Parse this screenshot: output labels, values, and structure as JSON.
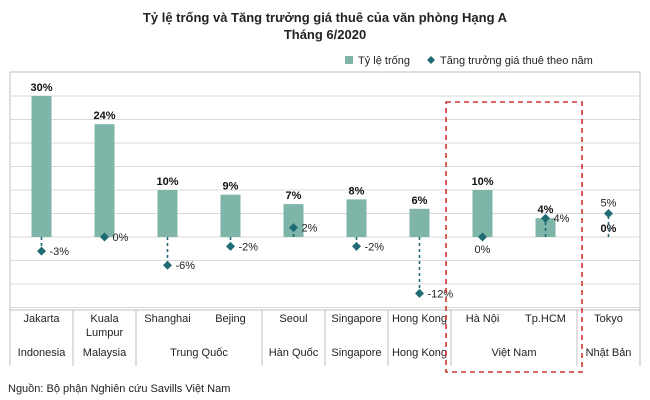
{
  "chart_data": {
    "type": "bar",
    "title_line1": "Tỷ lệ trống và Tăng trưởng giá thuê của văn phòng Hạng A",
    "title_line2": "Tháng 6/2020",
    "legend": {
      "bar_label": "Tỷ lệ trống",
      "marker_label": "Tăng trưởng giá thuê theo năm"
    },
    "categories": [
      {
        "label": "Jakarta",
        "label2": ""
      },
      {
        "label": "Kuala",
        "label2": "Lumpur"
      },
      {
        "label": "Shanghai",
        "label2": ""
      },
      {
        "label": "Bejing",
        "label2": ""
      },
      {
        "label": "Seoul",
        "label2": ""
      },
      {
        "label": "Singapore",
        "label2": ""
      },
      {
        "label": "Hong Kong",
        "label2": ""
      },
      {
        "label": "Hà Nội",
        "label2": ""
      },
      {
        "label": "Tp.HCM",
        "label2": ""
      },
      {
        "label": "Tokyo",
        "label2": ""
      }
    ],
    "groups": [
      {
        "label": "Indonesia",
        "span": [
          0,
          0
        ]
      },
      {
        "label": "Malaysia",
        "span": [
          1,
          1
        ]
      },
      {
        "label": "Trung Quốc",
        "span": [
          2,
          3
        ]
      },
      {
        "label": "Hàn Quốc",
        "span": [
          4,
          4
        ]
      },
      {
        "label": "Singapore",
        "span": [
          5,
          5
        ]
      },
      {
        "label": "Hong Kong",
        "span": [
          6,
          6
        ]
      },
      {
        "label": "Việt Nam",
        "span": [
          7,
          8
        ]
      },
      {
        "label": "Nhật Bản",
        "span": [
          9,
          9
        ]
      }
    ],
    "series": [
      {
        "name": "Tỷ lệ trống",
        "values": [
          30,
          24,
          10,
          9,
          7,
          8,
          6,
          10,
          4,
          0
        ],
        "labels": [
          "30%",
          "24%",
          "10%",
          "9%",
          "7%",
          "8%",
          "6%",
          "10%",
          "4%",
          "0%"
        ]
      },
      {
        "name": "Tăng trưởng giá thuê theo năm",
        "values": [
          -3,
          0,
          -6,
          -2,
          2,
          -2,
          -12,
          0,
          4,
          5
        ],
        "labels": [
          "-3%",
          "0%",
          "-6%",
          "-2%",
          "2%",
          "-2%",
          "-12%",
          "0%",
          "4%",
          "5%"
        ]
      }
    ],
    "ylim": [
      -15,
      35
    ],
    "grid": true,
    "highlight_group": "Việt Nam",
    "colors": {
      "bar": "#7fb5a9",
      "marker": "#1f6b73",
      "highlight": "#d0342c",
      "grid": "#d9d9d9"
    }
  },
  "source": "Nguồn: Bộ phận Nghiên cứu Savills Việt Nam"
}
